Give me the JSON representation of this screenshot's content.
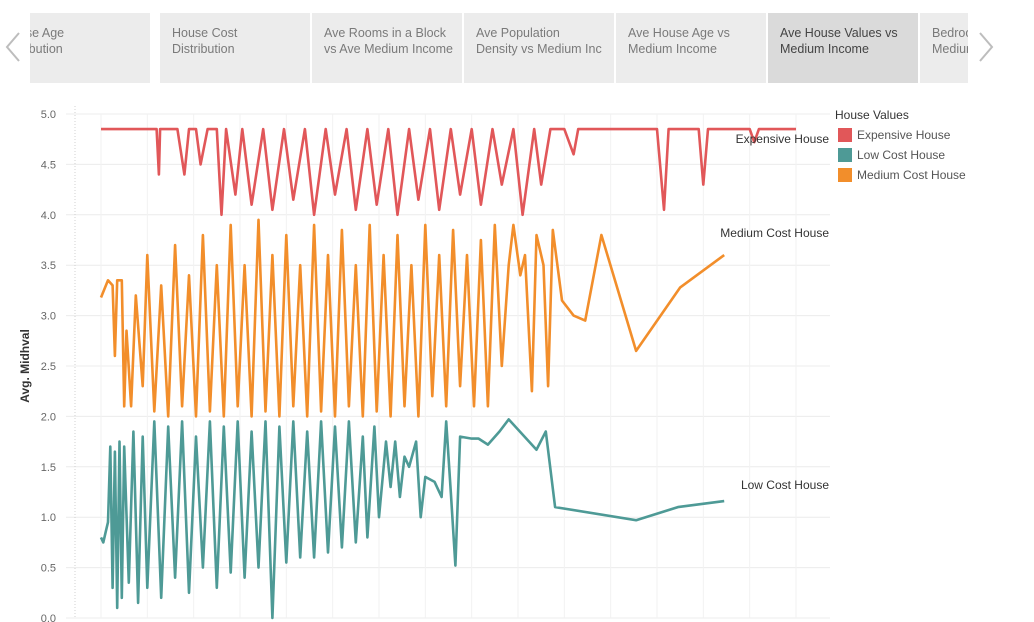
{
  "tabs": [
    {
      "line1": "ouse Age",
      "line2": "stribution",
      "active": false
    },
    {
      "line1": "House Cost",
      "line2": "Distribution",
      "active": false
    },
    {
      "line1": "Ave Rooms in a Block",
      "line2": "vs Ave Medium Income",
      "active": false
    },
    {
      "line1": "Ave Population",
      "line2": "Density vs Medium Inc",
      "active": false
    },
    {
      "line1": "Ave House Age vs",
      "line2": "Medium Income",
      "active": false
    },
    {
      "line1": "Ave House Values vs",
      "line2": "Medium Income",
      "active": true
    },
    {
      "line1": "Bedroo",
      "line2": "Mediur",
      "active": false
    }
  ],
  "nav": {
    "prev_icon": "chevron-left-icon",
    "next_icon": "chevron-right-icon"
  },
  "chart_data": {
    "type": "line",
    "ylabel": "Avg. Midhval",
    "xlabel": "",
    "ylim": [
      0,
      5
    ],
    "yticks": [
      "0.0",
      "0.5",
      "1.0",
      "1.5",
      "2.0",
      "2.5",
      "3.0",
      "3.5",
      "4.0",
      "4.5",
      "5.0"
    ],
    "grid": true,
    "legend": {
      "title": "House Values",
      "placement": "right"
    },
    "series": [
      {
        "name": "Expensive House",
        "color": "#e15759",
        "points": [
          [
            0.0,
            4.85
          ],
          [
            0.2,
            4.85
          ],
          [
            0.4,
            4.85
          ],
          [
            0.6,
            4.85
          ],
          [
            0.8,
            4.85
          ],
          [
            1.0,
            4.85
          ],
          [
            1.2,
            4.85
          ],
          [
            1.4,
            4.85
          ],
          [
            1.6,
            4.85
          ],
          [
            1.8,
            4.85
          ],
          [
            2.0,
            4.85
          ],
          [
            2.2,
            4.85
          ],
          [
            2.4,
            4.85
          ],
          [
            2.5,
            4.4
          ],
          [
            2.55,
            4.85
          ],
          [
            3.0,
            4.85
          ],
          [
            3.3,
            4.85
          ],
          [
            3.6,
            4.4
          ],
          [
            3.8,
            4.85
          ],
          [
            4.1,
            4.85
          ],
          [
            4.3,
            4.5
          ],
          [
            4.6,
            4.85
          ],
          [
            4.8,
            4.85
          ],
          [
            5.0,
            4.85
          ],
          [
            5.2,
            4.0
          ],
          [
            5.4,
            4.85
          ],
          [
            5.8,
            4.2
          ],
          [
            6.1,
            4.85
          ],
          [
            6.5,
            4.1
          ],
          [
            7.0,
            4.85
          ],
          [
            7.4,
            4.05
          ],
          [
            7.9,
            4.85
          ],
          [
            8.3,
            4.15
          ],
          [
            8.8,
            4.85
          ],
          [
            9.2,
            4.0
          ],
          [
            9.7,
            4.85
          ],
          [
            10.1,
            4.2
          ],
          [
            10.6,
            4.85
          ],
          [
            11.0,
            4.05
          ],
          [
            11.5,
            4.85
          ],
          [
            11.9,
            4.1
          ],
          [
            12.4,
            4.85
          ],
          [
            12.8,
            4.0
          ],
          [
            13.3,
            4.85
          ],
          [
            13.7,
            4.15
          ],
          [
            14.2,
            4.85
          ],
          [
            14.6,
            4.05
          ],
          [
            15.1,
            4.85
          ],
          [
            15.5,
            4.2
          ],
          [
            16.0,
            4.85
          ],
          [
            16.4,
            4.1
          ],
          [
            16.9,
            4.85
          ],
          [
            17.3,
            4.3
          ],
          [
            17.8,
            4.85
          ],
          [
            18.2,
            4.0
          ],
          [
            18.7,
            4.85
          ],
          [
            19.0,
            4.3
          ],
          [
            19.4,
            4.85
          ],
          [
            20.0,
            4.85
          ],
          [
            20.4,
            4.6
          ],
          [
            20.6,
            4.85
          ],
          [
            21.5,
            4.85
          ],
          [
            22.0,
            4.85
          ],
          [
            24.0,
            4.85
          ],
          [
            24.3,
            4.05
          ],
          [
            24.5,
            4.85
          ],
          [
            25.8,
            4.85
          ],
          [
            26.0,
            4.3
          ],
          [
            26.2,
            4.85
          ],
          [
            28.0,
            4.85
          ],
          [
            28.2,
            4.72
          ],
          [
            28.4,
            4.85
          ],
          [
            29.0,
            4.85
          ],
          [
            30.0,
            4.85
          ]
        ]
      },
      {
        "name": "Medium Cost House",
        "color": "#f28e2b",
        "points": [
          [
            0.0,
            3.18
          ],
          [
            0.3,
            3.35
          ],
          [
            0.5,
            3.3
          ],
          [
            0.6,
            2.6
          ],
          [
            0.7,
            3.35
          ],
          [
            0.9,
            3.35
          ],
          [
            1.0,
            2.1
          ],
          [
            1.1,
            2.85
          ],
          [
            1.3,
            2.1
          ],
          [
            1.5,
            3.2
          ],
          [
            1.8,
            2.3
          ],
          [
            2.0,
            3.6
          ],
          [
            2.3,
            2.05
          ],
          [
            2.6,
            3.3
          ],
          [
            2.9,
            2.0
          ],
          [
            3.2,
            3.7
          ],
          [
            3.5,
            2.1
          ],
          [
            3.8,
            3.4
          ],
          [
            4.1,
            2.0
          ],
          [
            4.4,
            3.8
          ],
          [
            4.7,
            2.05
          ],
          [
            5.0,
            3.5
          ],
          [
            5.3,
            2.0
          ],
          [
            5.6,
            3.9
          ],
          [
            5.9,
            2.1
          ],
          [
            6.2,
            3.5
          ],
          [
            6.5,
            2.0
          ],
          [
            6.8,
            3.95
          ],
          [
            7.1,
            2.05
          ],
          [
            7.4,
            3.6
          ],
          [
            7.7,
            2.0
          ],
          [
            8.0,
            3.8
          ],
          [
            8.3,
            2.1
          ],
          [
            8.6,
            3.5
          ],
          [
            8.9,
            2.0
          ],
          [
            9.2,
            3.9
          ],
          [
            9.5,
            2.05
          ],
          [
            9.8,
            3.6
          ],
          [
            10.1,
            2.0
          ],
          [
            10.4,
            3.85
          ],
          [
            10.7,
            2.1
          ],
          [
            11.0,
            3.5
          ],
          [
            11.3,
            2.0
          ],
          [
            11.6,
            3.9
          ],
          [
            11.9,
            2.05
          ],
          [
            12.2,
            3.6
          ],
          [
            12.5,
            2.0
          ],
          [
            12.8,
            3.8
          ],
          [
            13.1,
            2.1
          ],
          [
            13.4,
            3.5
          ],
          [
            13.7,
            2.0
          ],
          [
            14.0,
            3.9
          ],
          [
            14.3,
            2.2
          ],
          [
            14.6,
            3.6
          ],
          [
            14.9,
            2.1
          ],
          [
            15.2,
            3.85
          ],
          [
            15.5,
            2.3
          ],
          [
            15.8,
            3.6
          ],
          [
            16.1,
            2.1
          ],
          [
            16.4,
            3.75
          ],
          [
            16.7,
            2.1
          ],
          [
            17.0,
            3.9
          ],
          [
            17.3,
            2.5
          ],
          [
            17.6,
            3.5
          ],
          [
            17.8,
            3.9
          ],
          [
            18.1,
            3.4
          ],
          [
            18.3,
            3.6
          ],
          [
            18.6,
            2.25
          ],
          [
            18.8,
            3.8
          ],
          [
            19.1,
            3.5
          ],
          [
            19.3,
            2.3
          ],
          [
            19.5,
            3.85
          ],
          [
            19.9,
            3.15
          ],
          [
            20.4,
            3.0
          ],
          [
            20.9,
            2.95
          ],
          [
            21.6,
            3.8
          ],
          [
            23.1,
            2.65
          ],
          [
            25.0,
            3.28
          ],
          [
            26.9,
            3.6
          ]
        ]
      },
      {
        "name": "Low Cost House",
        "color": "#4e9a96",
        "points": [
          [
            0.0,
            0.8
          ],
          [
            0.1,
            0.75
          ],
          [
            0.2,
            0.85
          ],
          [
            0.3,
            0.95
          ],
          [
            0.4,
            1.7
          ],
          [
            0.5,
            0.3
          ],
          [
            0.6,
            1.65
          ],
          [
            0.7,
            0.1
          ],
          [
            0.8,
            1.75
          ],
          [
            0.9,
            0.2
          ],
          [
            1.0,
            1.7
          ],
          [
            1.2,
            0.35
          ],
          [
            1.4,
            1.85
          ],
          [
            1.6,
            0.15
          ],
          [
            1.8,
            1.8
          ],
          [
            2.0,
            0.3
          ],
          [
            2.3,
            1.95
          ],
          [
            2.6,
            0.2
          ],
          [
            2.9,
            1.9
          ],
          [
            3.2,
            0.4
          ],
          [
            3.5,
            1.95
          ],
          [
            3.8,
            0.25
          ],
          [
            4.1,
            1.8
          ],
          [
            4.4,
            0.5
          ],
          [
            4.7,
            1.95
          ],
          [
            5.0,
            0.3
          ],
          [
            5.3,
            1.9
          ],
          [
            5.6,
            0.45
          ],
          [
            5.9,
            1.95
          ],
          [
            6.2,
            0.4
          ],
          [
            6.5,
            1.85
          ],
          [
            6.8,
            0.5
          ],
          [
            7.1,
            1.95
          ],
          [
            7.4,
            0.0
          ],
          [
            7.7,
            1.9
          ],
          [
            8.0,
            0.55
          ],
          [
            8.3,
            1.95
          ],
          [
            8.6,
            0.6
          ],
          [
            8.9,
            1.85
          ],
          [
            9.2,
            0.6
          ],
          [
            9.5,
            1.95
          ],
          [
            9.8,
            0.65
          ],
          [
            10.1,
            1.9
          ],
          [
            10.4,
            0.7
          ],
          [
            10.7,
            1.95
          ],
          [
            11.0,
            0.75
          ],
          [
            11.3,
            1.8
          ],
          [
            11.5,
            0.8
          ],
          [
            11.8,
            1.9
          ],
          [
            12.0,
            1.0
          ],
          [
            12.3,
            1.75
          ],
          [
            12.5,
            1.3
          ],
          [
            12.7,
            1.75
          ],
          [
            12.9,
            1.2
          ],
          [
            13.1,
            1.6
          ],
          [
            13.3,
            1.5
          ],
          [
            13.6,
            1.75
          ],
          [
            13.8,
            1.0
          ],
          [
            14.0,
            1.4
          ],
          [
            14.4,
            1.35
          ],
          [
            14.7,
            1.2
          ],
          [
            14.9,
            1.95
          ],
          [
            15.1,
            1.25
          ],
          [
            15.3,
            0.52
          ],
          [
            15.5,
            1.8
          ],
          [
            16.0,
            1.78
          ],
          [
            16.3,
            1.78
          ],
          [
            16.7,
            1.72
          ],
          [
            17.2,
            1.85
          ],
          [
            17.6,
            1.97
          ],
          [
            18.8,
            1.67
          ],
          [
            19.2,
            1.85
          ],
          [
            19.6,
            1.1
          ],
          [
            23.1,
            0.97
          ],
          [
            24.9,
            1.1
          ],
          [
            26.9,
            1.16
          ]
        ]
      }
    ],
    "annotations": [
      "Expensive House",
      "Medium Cost House",
      "Low Cost House"
    ]
  }
}
